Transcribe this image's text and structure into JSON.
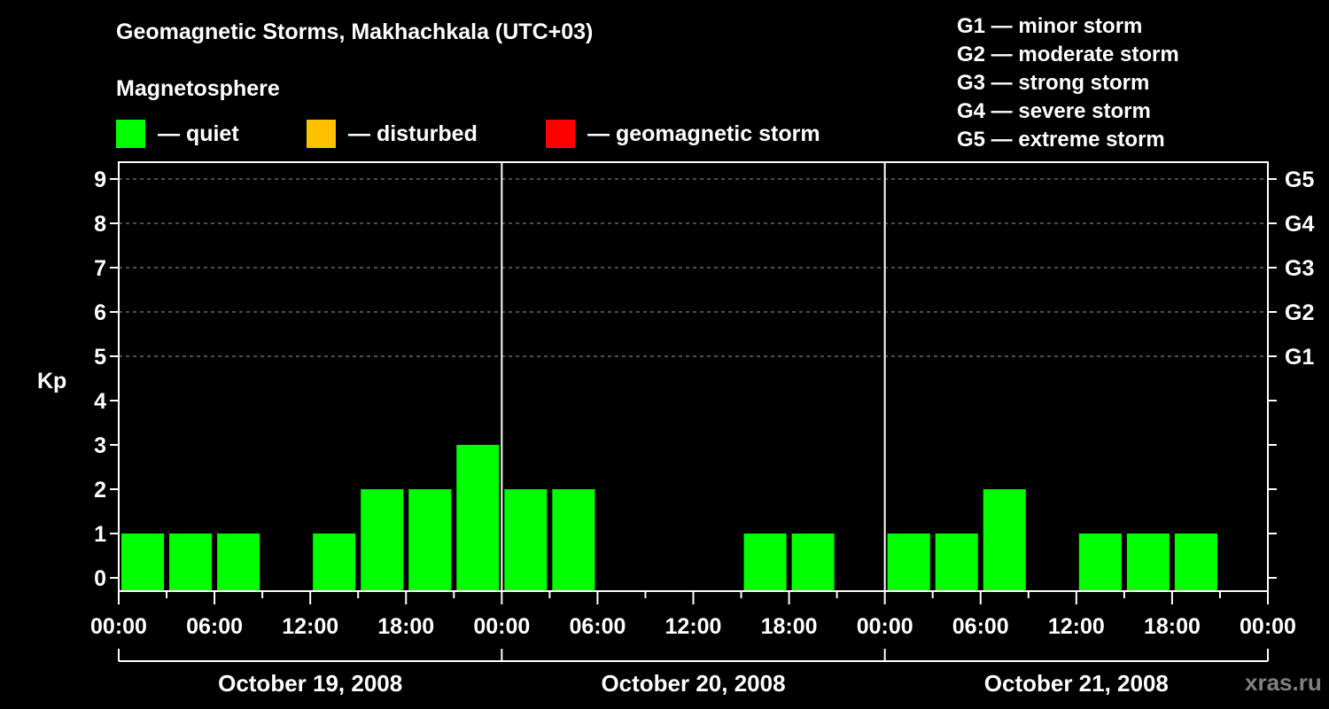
{
  "header": {
    "title": "Geomagnetic Storms, Makhachkala (UTC+03)",
    "subtitle": "Magnetosphere"
  },
  "legend": [
    {
      "label": "— quiet",
      "color": "#00ff00"
    },
    {
      "label": "— disturbed",
      "color": "#ffc000"
    },
    {
      "label": "— geomagnetic storm",
      "color": "#ff0000"
    }
  ],
  "g_scale": [
    "G1 — minor storm",
    "G2 — moderate storm",
    "G3 — strong storm",
    "G4 — severe storm",
    "G5 — extreme storm"
  ],
  "watermark": "xras.ru",
  "chart_data": {
    "type": "bar",
    "title": "Geomagnetic Storms, Makhachkala (UTC+03)",
    "ylabel": "Kp",
    "xlabel": "",
    "ylim": [
      0,
      9
    ],
    "yticks": [
      0,
      1,
      2,
      3,
      4,
      5,
      6,
      7,
      8,
      9
    ],
    "right_axis_labels": [
      {
        "y": 5,
        "label": "G1"
      },
      {
        "y": 6,
        "label": "G2"
      },
      {
        "y": 7,
        "label": "G3"
      },
      {
        "y": 8,
        "label": "G4"
      },
      {
        "y": 9,
        "label": "G5"
      }
    ],
    "grid": "dashed horizontal at Kp 5-9",
    "xtick_labels": [
      "00:00",
      "06:00",
      "12:00",
      "18:00",
      "00:00",
      "06:00",
      "12:00",
      "18:00",
      "00:00",
      "06:00",
      "12:00",
      "18:00",
      "00:00"
    ],
    "days": [
      "October 19, 2008",
      "October 20, 2008",
      "October 21, 2008"
    ],
    "categories": [
      "Oct 19 00:00",
      "Oct 19 03:00",
      "Oct 19 06:00",
      "Oct 19 09:00",
      "Oct 19 12:00",
      "Oct 19 15:00",
      "Oct 19 18:00",
      "Oct 19 21:00",
      "Oct 20 00:00",
      "Oct 20 03:00",
      "Oct 20 06:00",
      "Oct 20 09:00",
      "Oct 20 12:00",
      "Oct 20 15:00",
      "Oct 20 18:00",
      "Oct 20 21:00",
      "Oct 21 00:00",
      "Oct 21 03:00",
      "Oct 21 06:00",
      "Oct 21 09:00",
      "Oct 21 12:00",
      "Oct 21 15:00",
      "Oct 21 18:00",
      "Oct 21 21:00"
    ],
    "values": [
      1,
      1,
      1,
      0,
      1,
      2,
      2,
      3,
      2,
      2,
      0,
      0,
      0,
      1,
      1,
      0,
      1,
      1,
      2,
      0,
      1,
      1,
      1,
      0
    ],
    "bar_color": "#00ff00"
  }
}
